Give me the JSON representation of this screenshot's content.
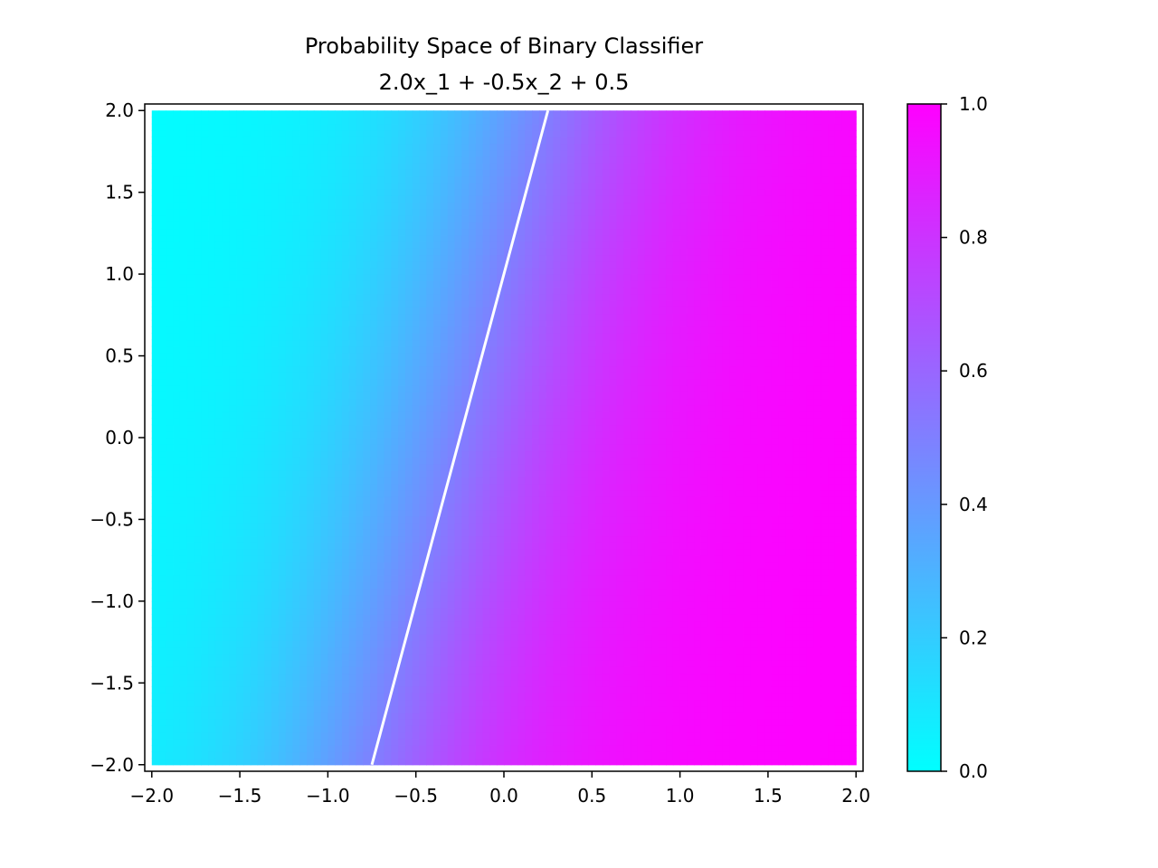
{
  "chart_data": {
    "type": "heatmap",
    "title": "Probability Space of Binary Classifier",
    "subtitle": "2.0x_1 + -0.5x_2 + 0.5",
    "xlabel": "",
    "ylabel": "",
    "xlim": [
      -2.04,
      2.04
    ],
    "ylim": [
      -2.04,
      2.04
    ],
    "x_ticks": [
      "−2.0",
      "−1.5",
      "−1.0",
      "−0.5",
      "0.0",
      "0.5",
      "1.0",
      "1.5",
      "2.0"
    ],
    "x_tick_values": [
      -2.0,
      -1.5,
      -1.0,
      -0.5,
      0.0,
      0.5,
      1.0,
      1.5,
      2.0
    ],
    "y_ticks": [
      "−2.0",
      "−1.5",
      "−1.0",
      "−0.5",
      "0.0",
      "0.5",
      "1.0",
      "1.5",
      "2.0"
    ],
    "y_tick_values": [
      -2.0,
      -1.5,
      -1.0,
      -0.5,
      0.0,
      0.5,
      1.0,
      1.5,
      2.0
    ],
    "colormap": "cool",
    "colormap_endpoints": [
      "#00ffff",
      "#ff00ff"
    ],
    "surface": {
      "function": "sigmoid",
      "w1": 2.0,
      "w2": -0.5,
      "b": 0.5,
      "domain": [
        -2.0,
        2.0
      ]
    },
    "decision_boundary": {
      "color": "#ffffff",
      "points": [
        [
          -0.75,
          -2.0
        ],
        [
          0.25,
          2.0
        ]
      ]
    },
    "colorbar": {
      "range": [
        0.0,
        1.0
      ],
      "tick_values": [
        0.0,
        0.2,
        0.4,
        0.6,
        0.8,
        1.0
      ],
      "ticks": [
        "0.0",
        "0.2",
        "0.4",
        "0.6",
        "0.8",
        "1.0"
      ]
    },
    "grid": false
  }
}
